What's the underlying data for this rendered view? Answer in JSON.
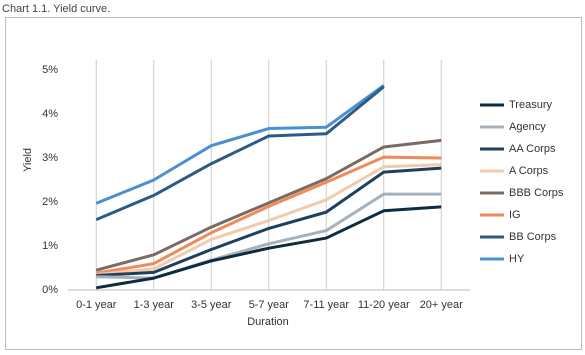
{
  "chart_data": {
    "type": "line",
    "title": "Chart 1.1. Yield curve.",
    "x_label": "Duration",
    "y_label": "Yield",
    "categories": [
      "0-1 year",
      "1-3 year",
      "3-5 year",
      "5-7 year",
      "7-11 year",
      "11-20 year",
      "20+ year"
    ],
    "ylim": [
      0,
      5
    ],
    "yticks": [
      {
        "value": 0,
        "label": "0%"
      },
      {
        "value": 1,
        "label": "1%"
      },
      {
        "value": 2,
        "label": "2%"
      },
      {
        "value": 3,
        "label": "3%"
      },
      {
        "value": 4,
        "label": "4%"
      },
      {
        "value": 5,
        "label": "5%"
      }
    ],
    "grid": "x",
    "legend": "right",
    "series": [
      {
        "name": "Treasury",
        "color": "#0e2b40",
        "values": [
          0.05,
          0.27,
          0.66,
          0.95,
          1.18,
          1.8,
          1.89
        ]
      },
      {
        "name": "Agency",
        "color": "#a7b1b9",
        "values": [
          0.3,
          0.27,
          0.68,
          1.05,
          1.35,
          2.18,
          2.18
        ]
      },
      {
        "name": "AA Corps",
        "color": "#1f3f5f",
        "values": [
          0.33,
          0.4,
          0.92,
          1.4,
          1.77,
          2.68,
          2.77
        ]
      },
      {
        "name": "A Corps",
        "color": "#f1cbab",
        "values": [
          0.35,
          0.48,
          1.15,
          1.58,
          2.05,
          2.8,
          2.85
        ]
      },
      {
        "name": "BBB Corps",
        "color": "#7b6a62",
        "values": [
          0.45,
          0.8,
          1.43,
          1.98,
          2.53,
          3.25,
          3.4
        ]
      },
      {
        "name": "IG",
        "color": "#f08a5a",
        "values": [
          0.38,
          0.6,
          1.3,
          1.9,
          2.45,
          3.02,
          3.0
        ]
      },
      {
        "name": "BB Corps",
        "color": "#2e5b85",
        "values": [
          1.6,
          2.15,
          2.87,
          3.5,
          3.55,
          4.62,
          null
        ]
      },
      {
        "name": "HY",
        "color": "#4a90d0",
        "values": [
          1.97,
          2.5,
          3.28,
          3.67,
          3.7,
          4.65,
          null
        ]
      }
    ]
  }
}
